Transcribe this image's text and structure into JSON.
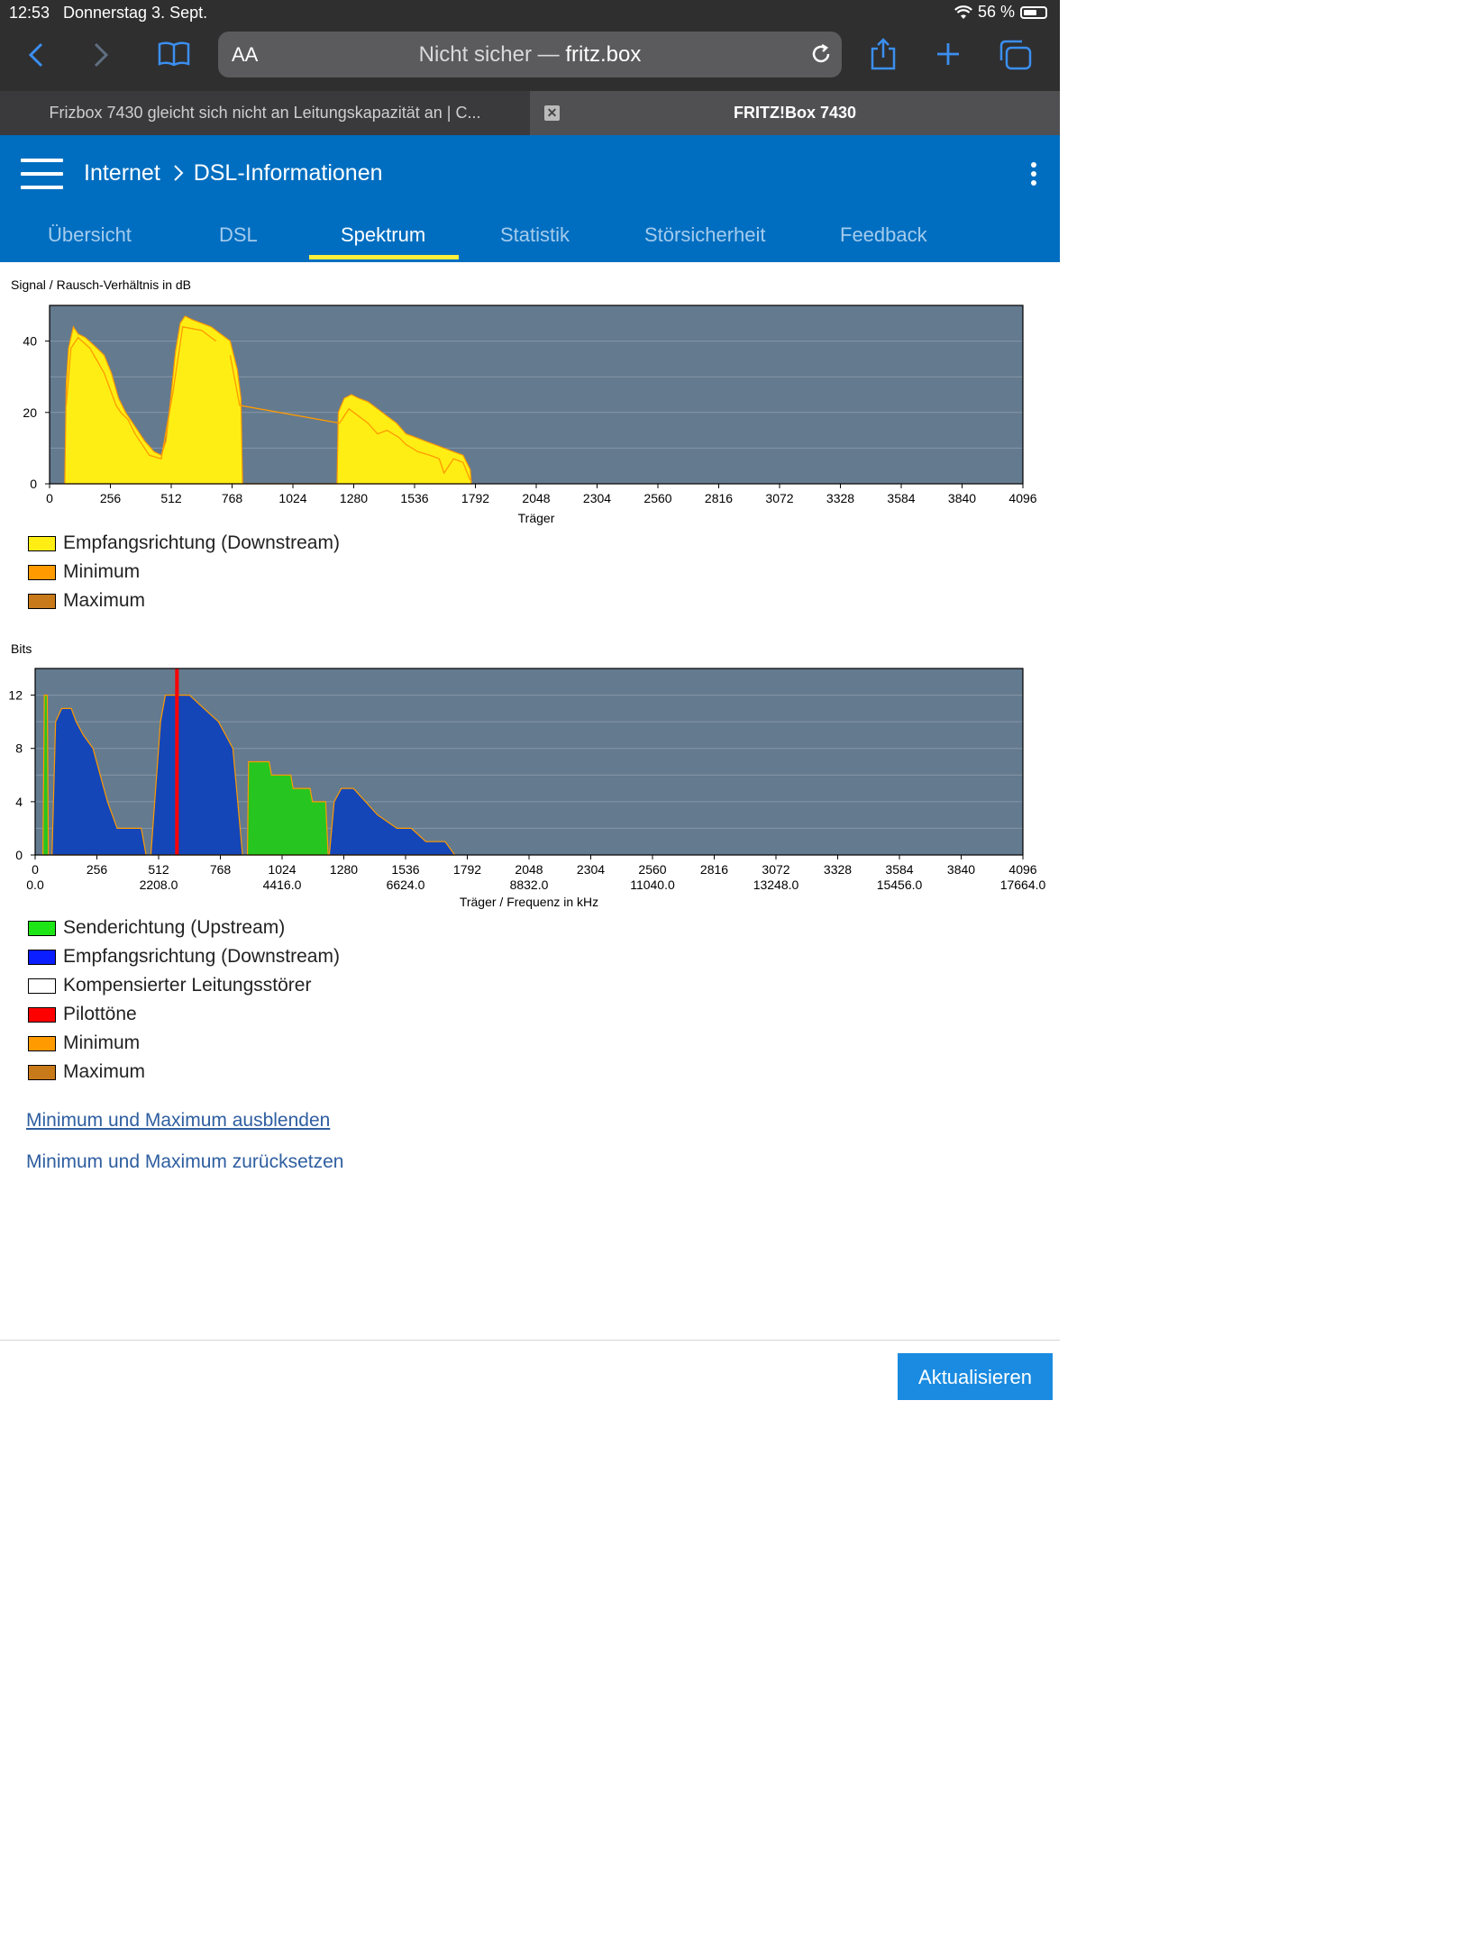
{
  "status": {
    "time": "12:53",
    "date": "Donnerstag 3. Sept.",
    "battery": "56 %",
    "battery_level": 0.56
  },
  "browser": {
    "aa": "AA",
    "url_prefix": "Nicht sicher — ",
    "url_host": "fritz.box",
    "tabs": [
      {
        "title": "Frizbox 7430 gleicht sich nicht an Leitungskapazität an | C..."
      },
      {
        "title": "FRITZ!Box 7430"
      }
    ]
  },
  "header": {
    "crumb_parent": "Internet",
    "crumb_current": "DSL-Informationen",
    "tabs": [
      "Übersicht",
      "DSL",
      "Spektrum",
      "Statistik",
      "Störsicherheit",
      "Feedback"
    ],
    "active_tab": "Spektrum"
  },
  "chart_data": [
    {
      "type": "area",
      "title": "Signal / Rausch-Verhältnis in dB",
      "xlabel": "Träger",
      "xlim": [
        0,
        4096
      ],
      "ylim": [
        0,
        50
      ],
      "x_ticks": [
        "0",
        "256",
        "512",
        "768",
        "1024",
        "1280",
        "1536",
        "1792",
        "2048",
        "2304",
        "2560",
        "2816",
        "3072",
        "3328",
        "3584",
        "3840",
        "4096"
      ],
      "y_ticks": [
        "0",
        "20",
        "40"
      ],
      "grid": true,
      "background": "#647a8e",
      "series": [
        {
          "name": "Empfangsrichtung (Downstream)",
          "color": "#ffee14",
          "points": [
            [
              64,
              0
            ],
            [
              70,
              28
            ],
            [
              80,
              38
            ],
            [
              100,
              44
            ],
            [
              120,
              42
            ],
            [
              150,
              41
            ],
            [
              200,
              38
            ],
            [
              230,
              36
            ],
            [
              260,
              31
            ],
            [
              290,
              24
            ],
            [
              320,
              20
            ],
            [
              360,
              16
            ],
            [
              400,
              12
            ],
            [
              440,
              9
            ],
            [
              470,
              8
            ],
            [
              490,
              12
            ],
            [
              510,
              24
            ],
            [
              530,
              37
            ],
            [
              550,
              45
            ],
            [
              570,
              47
            ],
            [
              600,
              46
            ],
            [
              640,
              45
            ],
            [
              680,
              44
            ],
            [
              720,
              42
            ],
            [
              760,
              40
            ],
            [
              790,
              32
            ],
            [
              805,
              24
            ],
            [
              812,
              0
            ],
            [
              1210,
              0
            ],
            [
              1215,
              20
            ],
            [
              1240,
              24
            ],
            [
              1270,
              25
            ],
            [
              1300,
              24
            ],
            [
              1340,
              23
            ],
            [
              1380,
              21
            ],
            [
              1420,
              19
            ],
            [
              1460,
              17
            ],
            [
              1500,
              14
            ],
            [
              1540,
              13
            ],
            [
              1580,
              12
            ],
            [
              1620,
              11
            ],
            [
              1660,
              10
            ],
            [
              1700,
              9
            ],
            [
              1740,
              8
            ],
            [
              1770,
              4
            ],
            [
              1775,
              0
            ]
          ]
        },
        {
          "name": "Minimum",
          "color": "#ff9a00",
          "points": [
            [
              70,
              22
            ],
            [
              90,
              38
            ],
            [
              120,
              41
            ],
            [
              170,
              38
            ],
            [
              230,
              31
            ],
            [
              280,
              22
            ],
            [
              300,
              20
            ],
            [
              330,
              18
            ],
            [
              360,
              14
            ],
            [
              420,
              8
            ],
            [
              470,
              7
            ],
            [
              520,
              26
            ],
            [
              560,
              44
            ],
            [
              640,
              43
            ],
            [
              700,
              40
            ],
            [
              760,
              36
            ],
            [
              800,
              22
            ],
            [
              1220,
              17
            ],
            [
              1260,
              21
            ],
            [
              1300,
              19
            ],
            [
              1340,
              17
            ],
            [
              1380,
              14
            ],
            [
              1420,
              15
            ],
            [
              1470,
              13
            ],
            [
              1500,
              11
            ],
            [
              1550,
              9
            ],
            [
              1600,
              8
            ],
            [
              1640,
              7
            ],
            [
              1660,
              3
            ],
            [
              1700,
              7
            ],
            [
              1740,
              6
            ],
            [
              1770,
              1
            ]
          ]
        },
        {
          "name": "Maximum",
          "color": "#c87a1a"
        }
      ]
    },
    {
      "type": "area",
      "title": "Bits",
      "xlabel": "Träger / Frequenz in kHz",
      "xlim": [
        0,
        4096
      ],
      "ylim": [
        0,
        14
      ],
      "x_ticks": [
        "0",
        "256",
        "512",
        "768",
        "1024",
        "1280",
        "1536",
        "1792",
        "2048",
        "2304",
        "2560",
        "2816",
        "3072",
        "3328",
        "3584",
        "3840",
        "4096"
      ],
      "x_ticks_freq": [
        "0.0",
        "2208.0",
        "4416.0",
        "6624.0",
        "8832.0",
        "11040.0",
        "13248.0",
        "15456.0",
        "17664.0"
      ],
      "y_ticks": [
        "0",
        "4",
        "8",
        "12"
      ],
      "grid": true,
      "background": "#647a8e",
      "series": [
        {
          "name": "Senderichtung (Upstream)",
          "color": "#27c51f",
          "segments": [
            [
              [
                32,
                0
              ],
              [
                38,
                12
              ],
              [
                50,
                12
              ],
              [
                55,
                0
              ]
            ],
            [
              [
                880,
                0
              ],
              [
                885,
                7
              ],
              [
                970,
                7
              ],
              [
                980,
                6
              ],
              [
                1060,
                6
              ],
              [
                1070,
                5
              ],
              [
                1140,
                5
              ],
              [
                1150,
                4
              ],
              [
                1205,
                4
              ],
              [
                1215,
                0
              ]
            ]
          ]
        },
        {
          "name": "Empfangsrichtung (Downstream)",
          "color": "#1446b8",
          "segments": [
            [
              [
                70,
                0
              ],
              [
                85,
                10
              ],
              [
                110,
                11
              ],
              [
                150,
                11
              ],
              [
                170,
                10
              ],
              [
                200,
                9
              ],
              [
                240,
                8
              ],
              [
                270,
                6
              ],
              [
                300,
                4
              ],
              [
                340,
                2
              ],
              [
                400,
                2
              ],
              [
                440,
                2
              ],
              [
                460,
                0
              ]
            ],
            [
              [
                480,
                0
              ],
              [
                520,
                10
              ],
              [
                540,
                12
              ],
              [
                640,
                12
              ],
              [
                700,
                11
              ],
              [
                760,
                10
              ],
              [
                820,
                8
              ],
              [
                860,
                0
              ]
            ],
            [
              [
                1220,
                0
              ],
              [
                1240,
                4
              ],
              [
                1270,
                5
              ],
              [
                1320,
                5
              ],
              [
                1370,
                4
              ],
              [
                1420,
                3
              ],
              [
                1500,
                2
              ],
              [
                1560,
                2
              ],
              [
                1620,
                1
              ],
              [
                1700,
                1
              ],
              [
                1740,
                0
              ]
            ]
          ]
        },
        {
          "name": "Kompensierter Leitungsstörer",
          "color": "#ffffff"
        },
        {
          "name": "Pilottöne",
          "color": "#ff0000",
          "x": 588
        },
        {
          "name": "Minimum",
          "color": "#ff9a00"
        },
        {
          "name": "Maximum",
          "color": "#c87a1a"
        }
      ]
    }
  ],
  "links": {
    "hide_minmax": "Minimum und Maximum ausblenden",
    "reset_minmax": "Minimum und Maximum zurücksetzen"
  },
  "footer": {
    "refresh": "Aktualisieren"
  }
}
